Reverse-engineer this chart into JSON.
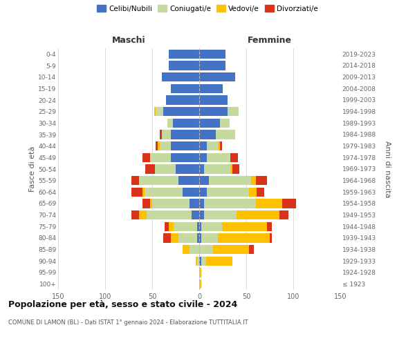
{
  "age_groups": [
    "100+",
    "95-99",
    "90-94",
    "85-89",
    "80-84",
    "75-79",
    "70-74",
    "65-69",
    "60-64",
    "55-59",
    "50-54",
    "45-49",
    "40-44",
    "35-39",
    "30-34",
    "25-29",
    "20-24",
    "15-19",
    "10-14",
    "5-9",
    "0-4"
  ],
  "birth_years": [
    "≤ 1923",
    "1924-1928",
    "1929-1933",
    "1934-1938",
    "1939-1943",
    "1944-1948",
    "1949-1953",
    "1954-1958",
    "1959-1963",
    "1964-1968",
    "1969-1973",
    "1974-1978",
    "1979-1983",
    "1984-1988",
    "1989-1993",
    "1994-1998",
    "1999-2003",
    "2004-2008",
    "2009-2013",
    "2014-2018",
    "2019-2023"
  ],
  "male_celibi": [
    0,
    0,
    0,
    0,
    2,
    2,
    8,
    10,
    18,
    22,
    25,
    30,
    30,
    30,
    28,
    38,
    35,
    30,
    40,
    32,
    32
  ],
  "male_coniugati": [
    0,
    0,
    2,
    10,
    20,
    25,
    48,
    40,
    40,
    42,
    22,
    22,
    12,
    10,
    6,
    8,
    0,
    0,
    0,
    0,
    0
  ],
  "male_vedovi": [
    0,
    0,
    2,
    8,
    8,
    5,
    8,
    2,
    2,
    0,
    0,
    0,
    2,
    0,
    0,
    2,
    0,
    0,
    0,
    0,
    0
  ],
  "male_divorziati": [
    0,
    0,
    0,
    0,
    8,
    5,
    8,
    8,
    12,
    8,
    10,
    8,
    2,
    2,
    0,
    0,
    0,
    0,
    0,
    0,
    0
  ],
  "female_celibi": [
    0,
    0,
    2,
    0,
    2,
    2,
    5,
    5,
    8,
    10,
    5,
    8,
    8,
    18,
    22,
    30,
    30,
    25,
    38,
    28,
    28
  ],
  "female_coniugati": [
    0,
    0,
    5,
    15,
    18,
    22,
    35,
    55,
    45,
    45,
    28,
    25,
    12,
    20,
    10,
    12,
    0,
    0,
    0,
    0,
    0
  ],
  "female_vedovi": [
    2,
    2,
    28,
    38,
    55,
    48,
    45,
    28,
    8,
    5,
    2,
    0,
    2,
    0,
    0,
    0,
    0,
    0,
    0,
    0,
    0
  ],
  "female_divorziati": [
    0,
    0,
    0,
    5,
    2,
    5,
    10,
    15,
    8,
    12,
    8,
    8,
    2,
    0,
    0,
    0,
    0,
    0,
    0,
    0,
    0
  ],
  "color_celibi": "#4472c4",
  "color_coniugati": "#c5d9a0",
  "color_vedovi": "#ffc000",
  "color_divorziati": "#d9341a",
  "title": "Popolazione per età, sesso e stato civile - 2024",
  "subtitle": "COMUNE DI LAMON (BL) - Dati ISTAT 1° gennaio 2024 - Elaborazione TUTTITALIA.IT",
  "xlabel_left": "Maschi",
  "xlabel_right": "Femmine",
  "ylabel_left": "Fasce di età",
  "ylabel_right": "Anni di nascita",
  "xlim": 150,
  "bg_color": "#ffffff",
  "grid_color": "#cccccc",
  "bar_height": 0.8
}
